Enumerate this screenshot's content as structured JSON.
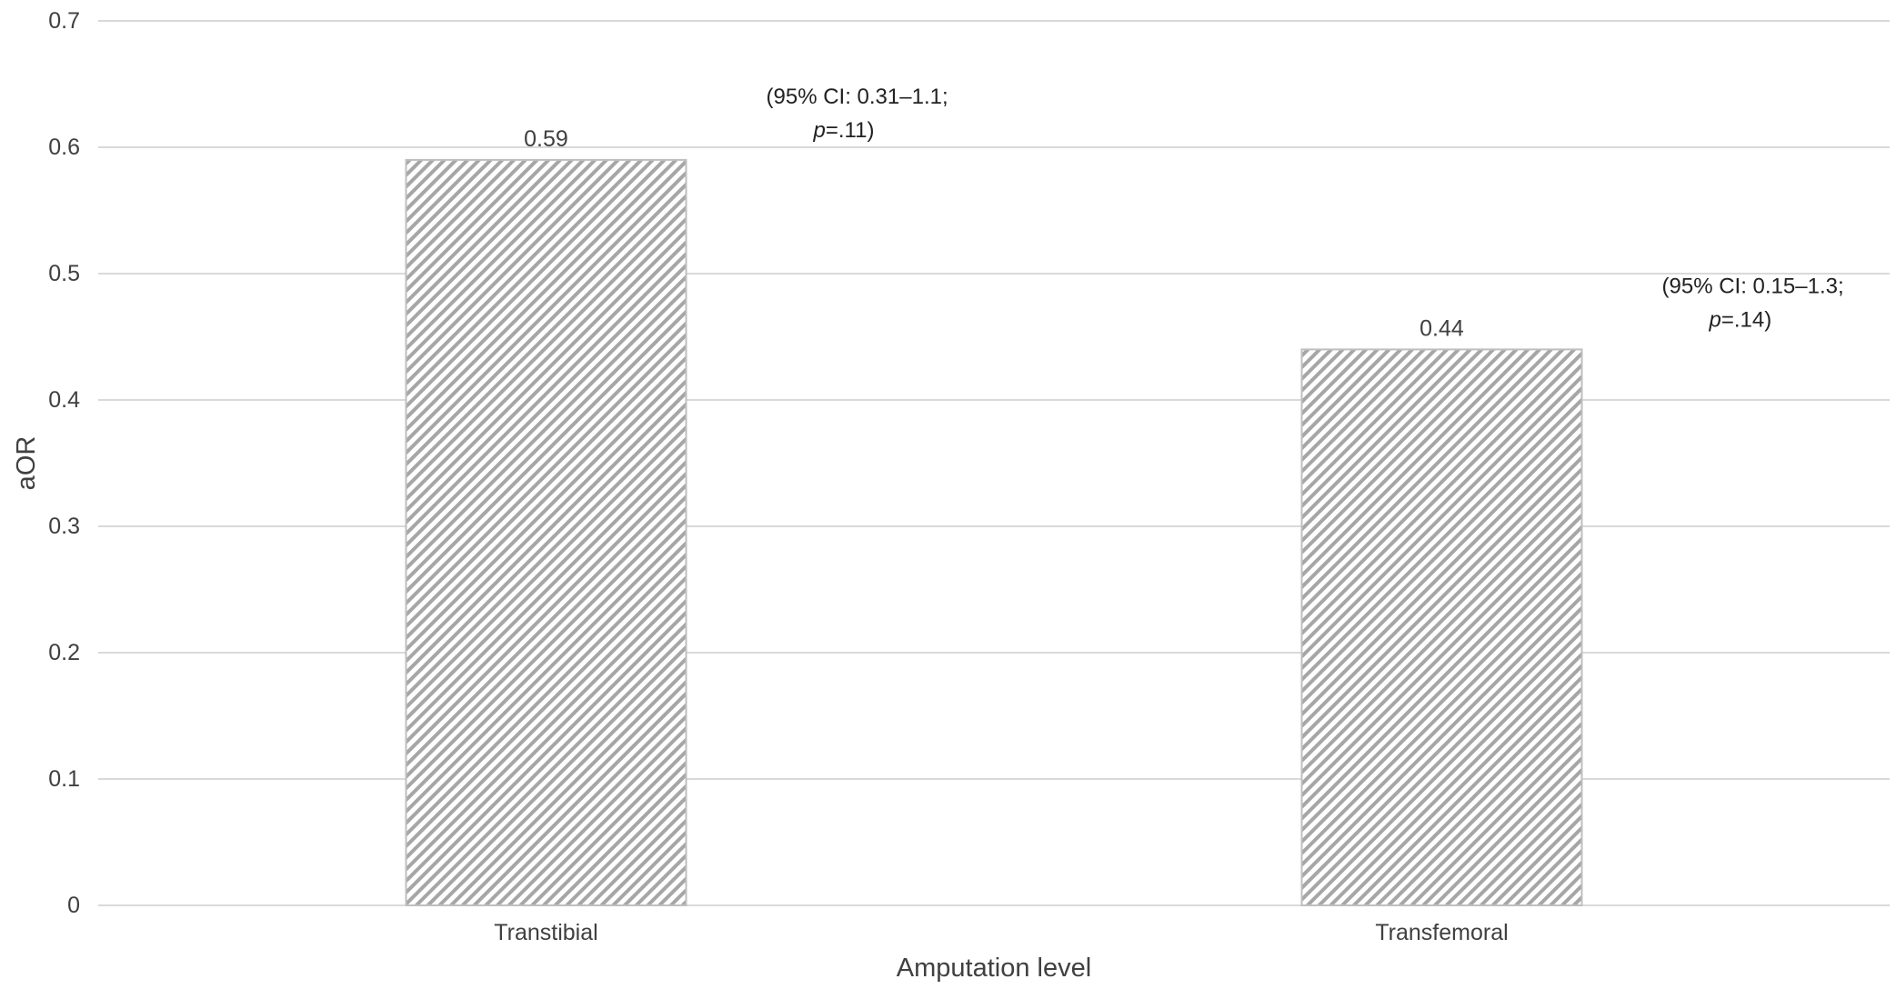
{
  "chart_data": {
    "type": "bar",
    "categories": [
      "Transtibial",
      "Transfemoral"
    ],
    "values": [
      0.59,
      0.44
    ],
    "data_labels": [
      "0.59",
      "0.44"
    ],
    "annotations": [
      {
        "category": "Transtibial",
        "line1": "(95% CI: 0.31–1.1;",
        "line2_italic": "p",
        "line2_rest": "=.11)"
      },
      {
        "category": "Transfemoral",
        "line1": "(95% CI: 0.15–1.3;",
        "line2_italic": "p",
        "line2_rest": "=.14)"
      }
    ],
    "xlabel": "Amputation level",
    "ylabel": "aOR",
    "ylim": [
      0,
      0.7
    ],
    "yticks": [
      0,
      0.1,
      0.2,
      0.3,
      0.4,
      0.5,
      0.6,
      0.7
    ],
    "ytick_labels": [
      "0",
      "0.1",
      "0.2",
      "0.3",
      "0.4",
      "0.5",
      "0.6",
      "0.7"
    ],
    "grid": true,
    "colors": {
      "bar_fill_hatch": "#a6a6a6",
      "bar_stroke": "#bfbfbf",
      "grid": "#d9d9d9",
      "text": "#404040"
    }
  }
}
